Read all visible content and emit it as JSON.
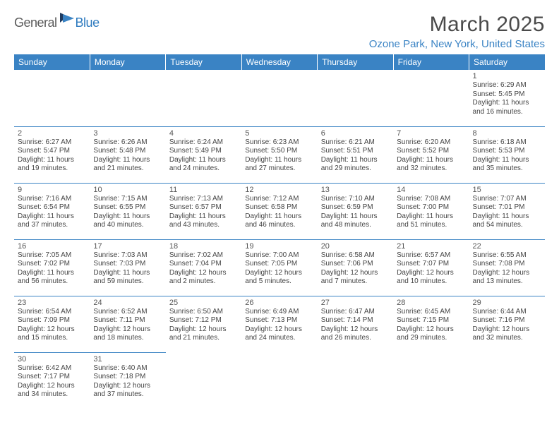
{
  "brand": {
    "general": "General",
    "blue": "Blue"
  },
  "title": "March 2025",
  "location": "Ozone Park, New York, United States",
  "colors": {
    "header_bg": "#3a83c4",
    "header_text": "#ffffff",
    "accent": "#3a83c4",
    "logo_gray": "#5a5a5a",
    "logo_blue": "#2f7bbf",
    "body_text": "#444444"
  },
  "day_headers": [
    "Sunday",
    "Monday",
    "Tuesday",
    "Wednesday",
    "Thursday",
    "Friday",
    "Saturday"
  ],
  "weeks": [
    [
      null,
      null,
      null,
      null,
      null,
      null,
      {
        "n": "1",
        "sr": "Sunrise: 6:29 AM",
        "ss": "Sunset: 5:45 PM",
        "d1": "Daylight: 11 hours",
        "d2": "and 16 minutes."
      }
    ],
    [
      {
        "n": "2",
        "sr": "Sunrise: 6:27 AM",
        "ss": "Sunset: 5:47 PM",
        "d1": "Daylight: 11 hours",
        "d2": "and 19 minutes."
      },
      {
        "n": "3",
        "sr": "Sunrise: 6:26 AM",
        "ss": "Sunset: 5:48 PM",
        "d1": "Daylight: 11 hours",
        "d2": "and 21 minutes."
      },
      {
        "n": "4",
        "sr": "Sunrise: 6:24 AM",
        "ss": "Sunset: 5:49 PM",
        "d1": "Daylight: 11 hours",
        "d2": "and 24 minutes."
      },
      {
        "n": "5",
        "sr": "Sunrise: 6:23 AM",
        "ss": "Sunset: 5:50 PM",
        "d1": "Daylight: 11 hours",
        "d2": "and 27 minutes."
      },
      {
        "n": "6",
        "sr": "Sunrise: 6:21 AM",
        "ss": "Sunset: 5:51 PM",
        "d1": "Daylight: 11 hours",
        "d2": "and 29 minutes."
      },
      {
        "n": "7",
        "sr": "Sunrise: 6:20 AM",
        "ss": "Sunset: 5:52 PM",
        "d1": "Daylight: 11 hours",
        "d2": "and 32 minutes."
      },
      {
        "n": "8",
        "sr": "Sunrise: 6:18 AM",
        "ss": "Sunset: 5:53 PM",
        "d1": "Daylight: 11 hours",
        "d2": "and 35 minutes."
      }
    ],
    [
      {
        "n": "9",
        "sr": "Sunrise: 7:16 AM",
        "ss": "Sunset: 6:54 PM",
        "d1": "Daylight: 11 hours",
        "d2": "and 37 minutes."
      },
      {
        "n": "10",
        "sr": "Sunrise: 7:15 AM",
        "ss": "Sunset: 6:55 PM",
        "d1": "Daylight: 11 hours",
        "d2": "and 40 minutes."
      },
      {
        "n": "11",
        "sr": "Sunrise: 7:13 AM",
        "ss": "Sunset: 6:57 PM",
        "d1": "Daylight: 11 hours",
        "d2": "and 43 minutes."
      },
      {
        "n": "12",
        "sr": "Sunrise: 7:12 AM",
        "ss": "Sunset: 6:58 PM",
        "d1": "Daylight: 11 hours",
        "d2": "and 46 minutes."
      },
      {
        "n": "13",
        "sr": "Sunrise: 7:10 AM",
        "ss": "Sunset: 6:59 PM",
        "d1": "Daylight: 11 hours",
        "d2": "and 48 minutes."
      },
      {
        "n": "14",
        "sr": "Sunrise: 7:08 AM",
        "ss": "Sunset: 7:00 PM",
        "d1": "Daylight: 11 hours",
        "d2": "and 51 minutes."
      },
      {
        "n": "15",
        "sr": "Sunrise: 7:07 AM",
        "ss": "Sunset: 7:01 PM",
        "d1": "Daylight: 11 hours",
        "d2": "and 54 minutes."
      }
    ],
    [
      {
        "n": "16",
        "sr": "Sunrise: 7:05 AM",
        "ss": "Sunset: 7:02 PM",
        "d1": "Daylight: 11 hours",
        "d2": "and 56 minutes."
      },
      {
        "n": "17",
        "sr": "Sunrise: 7:03 AM",
        "ss": "Sunset: 7:03 PM",
        "d1": "Daylight: 11 hours",
        "d2": "and 59 minutes."
      },
      {
        "n": "18",
        "sr": "Sunrise: 7:02 AM",
        "ss": "Sunset: 7:04 PM",
        "d1": "Daylight: 12 hours",
        "d2": "and 2 minutes."
      },
      {
        "n": "19",
        "sr": "Sunrise: 7:00 AM",
        "ss": "Sunset: 7:05 PM",
        "d1": "Daylight: 12 hours",
        "d2": "and 5 minutes."
      },
      {
        "n": "20",
        "sr": "Sunrise: 6:58 AM",
        "ss": "Sunset: 7:06 PM",
        "d1": "Daylight: 12 hours",
        "d2": "and 7 minutes."
      },
      {
        "n": "21",
        "sr": "Sunrise: 6:57 AM",
        "ss": "Sunset: 7:07 PM",
        "d1": "Daylight: 12 hours",
        "d2": "and 10 minutes."
      },
      {
        "n": "22",
        "sr": "Sunrise: 6:55 AM",
        "ss": "Sunset: 7:08 PM",
        "d1": "Daylight: 12 hours",
        "d2": "and 13 minutes."
      }
    ],
    [
      {
        "n": "23",
        "sr": "Sunrise: 6:54 AM",
        "ss": "Sunset: 7:09 PM",
        "d1": "Daylight: 12 hours",
        "d2": "and 15 minutes."
      },
      {
        "n": "24",
        "sr": "Sunrise: 6:52 AM",
        "ss": "Sunset: 7:11 PM",
        "d1": "Daylight: 12 hours",
        "d2": "and 18 minutes."
      },
      {
        "n": "25",
        "sr": "Sunrise: 6:50 AM",
        "ss": "Sunset: 7:12 PM",
        "d1": "Daylight: 12 hours",
        "d2": "and 21 minutes."
      },
      {
        "n": "26",
        "sr": "Sunrise: 6:49 AM",
        "ss": "Sunset: 7:13 PM",
        "d1": "Daylight: 12 hours",
        "d2": "and 24 minutes."
      },
      {
        "n": "27",
        "sr": "Sunrise: 6:47 AM",
        "ss": "Sunset: 7:14 PM",
        "d1": "Daylight: 12 hours",
        "d2": "and 26 minutes."
      },
      {
        "n": "28",
        "sr": "Sunrise: 6:45 AM",
        "ss": "Sunset: 7:15 PM",
        "d1": "Daylight: 12 hours",
        "d2": "and 29 minutes."
      },
      {
        "n": "29",
        "sr": "Sunrise: 6:44 AM",
        "ss": "Sunset: 7:16 PM",
        "d1": "Daylight: 12 hours",
        "d2": "and 32 minutes."
      }
    ],
    [
      {
        "n": "30",
        "sr": "Sunrise: 6:42 AM",
        "ss": "Sunset: 7:17 PM",
        "d1": "Daylight: 12 hours",
        "d2": "and 34 minutes."
      },
      {
        "n": "31",
        "sr": "Sunrise: 6:40 AM",
        "ss": "Sunset: 7:18 PM",
        "d1": "Daylight: 12 hours",
        "d2": "and 37 minutes."
      },
      null,
      null,
      null,
      null,
      null
    ]
  ]
}
